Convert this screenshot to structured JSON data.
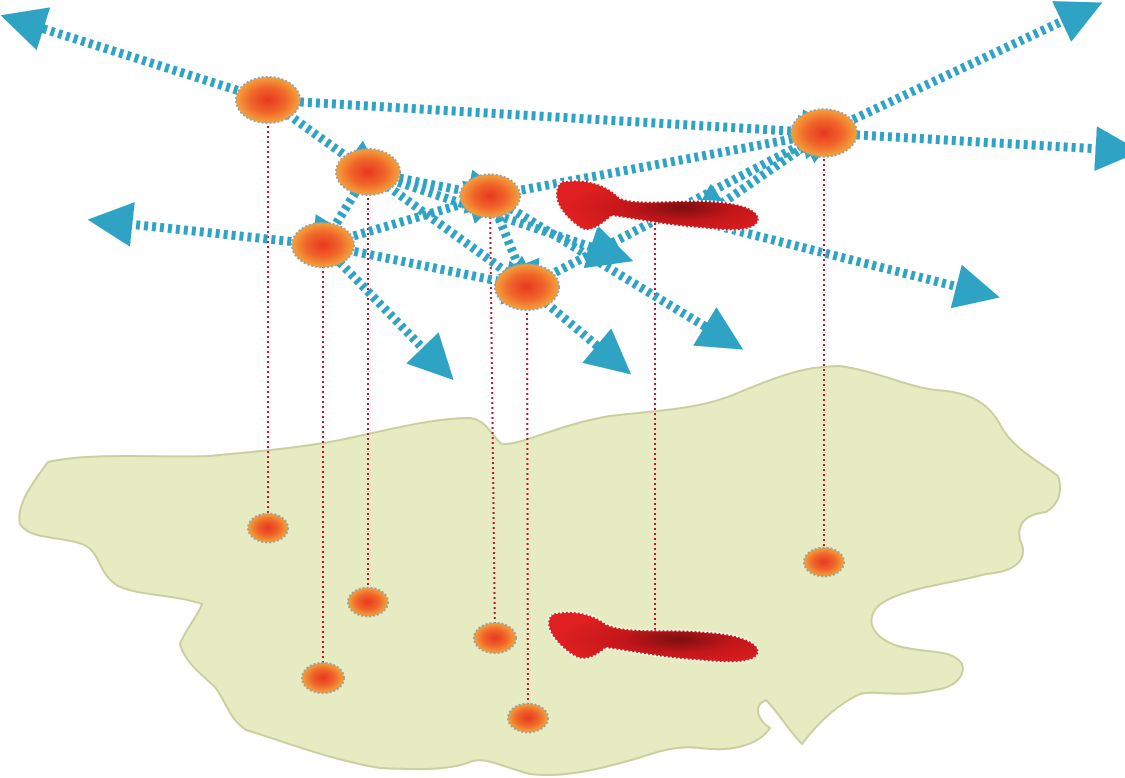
{
  "colors": {
    "region_fill": "#e6ebc2",
    "region_stroke": "#c9cf9e",
    "flow_arrow": "#2ea3c3",
    "node_outer": "#f28c28",
    "node_core": "#e8381f",
    "node_border": "#9aa0a0",
    "core_area": "#d81c1c",
    "core_area_dark": "#7c0f10",
    "projection_line": "#c8102e"
  },
  "icons": {
    "node": "radial-orange-node-icon",
    "core_area": "red-core-area-icon",
    "flow": "dashed-arrow-icon"
  }
}
